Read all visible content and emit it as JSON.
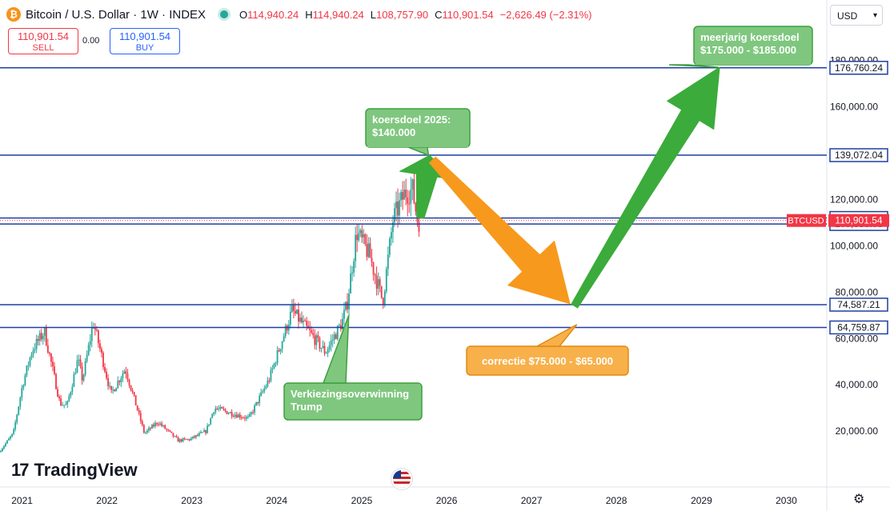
{
  "header": {
    "symbol": "Bitcoin / U.S. Dollar · 1W · INDEX",
    "btc_glyph": "₿",
    "ohlc": {
      "o_label": "O",
      "o": "114,940.24",
      "h_label": "H",
      "h": "114,940.24",
      "l_label": "L",
      "l": "108,757.90",
      "c_label": "C",
      "c": "110,901.54",
      "change": "−2,626.49 (−2.31%)"
    }
  },
  "trade": {
    "sell_price": "110,901.54",
    "sell_label": "SELL",
    "spread": "0.00",
    "buy_price": "110,901.54",
    "buy_label": "BUY"
  },
  "currency": {
    "label": "USD",
    "caret": "▾"
  },
  "brand": {
    "mark": "17",
    "name": "TradingView"
  },
  "colors": {
    "up": "#26a69a",
    "down": "#f23645",
    "line": "#1e3fa0",
    "green_arrow": "#3bab3b",
    "orange_arrow": "#f7991c",
    "green_box": "#7fc77f",
    "orange_box": "#f8b04a"
  },
  "chart_data": {
    "type": "candlestick",
    "ylim": [
      0,
      190000
    ],
    "y_ticks": [
      "20,000.00",
      "40,000.00",
      "60,000.00",
      "80,000.00",
      "100,000.00",
      "120,000.00",
      "160,000.00",
      "180,000.00"
    ],
    "y_tick_values": [
      20000,
      40000,
      60000,
      80000,
      100000,
      120000,
      160000,
      180000
    ],
    "x_ticks": [
      "2021",
      "2022",
      "2023",
      "2024",
      "2025",
      "2026",
      "2027",
      "2028",
      "2029",
      "2030"
    ],
    "x_start": "2020-09-28",
    "x_end": "2030-06-24",
    "price_path": [
      [
        "2020-10-01",
        11000
      ],
      [
        "2020-12-01",
        19000
      ],
      [
        "2021-01-10",
        40000
      ],
      [
        "2021-02-20",
        55000
      ],
      [
        "2021-04-14",
        63000
      ],
      [
        "2021-06-20",
        32000
      ],
      [
        "2021-07-20",
        31000
      ],
      [
        "2021-09-05",
        51000
      ],
      [
        "2021-09-25",
        42000
      ],
      [
        "2021-11-10",
        67000
      ],
      [
        "2021-12-25",
        49000
      ],
      [
        "2022-01-25",
        36000
      ],
      [
        "2022-03-28",
        47000
      ],
      [
        "2022-06-18",
        19000
      ],
      [
        "2022-08-15",
        24000
      ],
      [
        "2022-11-10",
        16000
      ],
      [
        "2022-12-31",
        16500
      ],
      [
        "2023-03-10",
        20000
      ],
      [
        "2023-04-15",
        30000
      ],
      [
        "2023-09-10",
        25500
      ],
      [
        "2023-12-05",
        42000
      ],
      [
        "2024-03-14",
        72000
      ],
      [
        "2024-08-05",
        54000
      ],
      [
        "2024-10-15",
        67000
      ],
      [
        "2024-11-06",
        75000
      ],
      [
        "2024-12-17",
        106000
      ],
      [
        "2025-02-10",
        96000
      ],
      [
        "2025-04-08",
        76000
      ],
      [
        "2025-05-22",
        111000
      ],
      [
        "2025-07-14",
        123000
      ],
      [
        "2025-08-14",
        124000
      ],
      [
        "2025-09-05",
        111000
      ]
    ],
    "level_lines": [
      {
        "value": 176760.24,
        "label": "176,760.24"
      },
      {
        "value": 139072.04,
        "label": "139,072.04"
      },
      {
        "value": 111970.39,
        "label": "111,970.39"
      },
      {
        "value": 109386.08,
        "label": "109,386.08"
      },
      {
        "value": 74587.21,
        "label": "74,587.21"
      },
      {
        "value": 64759.87,
        "label": "64,759.87"
      }
    ],
    "last_price": {
      "value": 110901.54,
      "label": "110,901.54",
      "ticker": "BTCUSD"
    },
    "annotations": [
      {
        "id": "target-2025",
        "text": [
          "koersdoel 2025:",
          "$140.000"
        ],
        "color": "green",
        "anchor": [
          "2025-10-15",
          139000
        ]
      },
      {
        "id": "multi-year-target",
        "text": [
          "meerjarig koersdoel",
          "$175.000 - $185.000"
        ],
        "color": "green",
        "anchor": [
          "2029-03-15",
          177000
        ]
      },
      {
        "id": "correction",
        "text": [
          "correctie $75.000 - $65.000"
        ],
        "color": "orange",
        "anchor": [
          "2027-07-15",
          66000
        ]
      },
      {
        "id": "election-win",
        "text": [
          "Verkiezingsoverwinning",
          "Trump"
        ],
        "color": "green",
        "anchor": [
          "2024-11-06",
          70000
        ]
      }
    ],
    "arrows": [
      {
        "id": "arrow-to-2025-target",
        "color": "green",
        "from": [
          "2025-09-10",
          112000
        ],
        "to": [
          "2025-10-20",
          139000
        ]
      },
      {
        "id": "arrow-correction",
        "color": "orange",
        "from": [
          "2025-11-01",
          137000
        ],
        "to": [
          "2027-06-15",
          75000
        ]
      },
      {
        "id": "arrow-multi-year",
        "color": "green",
        "from": [
          "2027-07-05",
          74000
        ],
        "to": [
          "2029-03-20",
          177000
        ]
      }
    ]
  }
}
